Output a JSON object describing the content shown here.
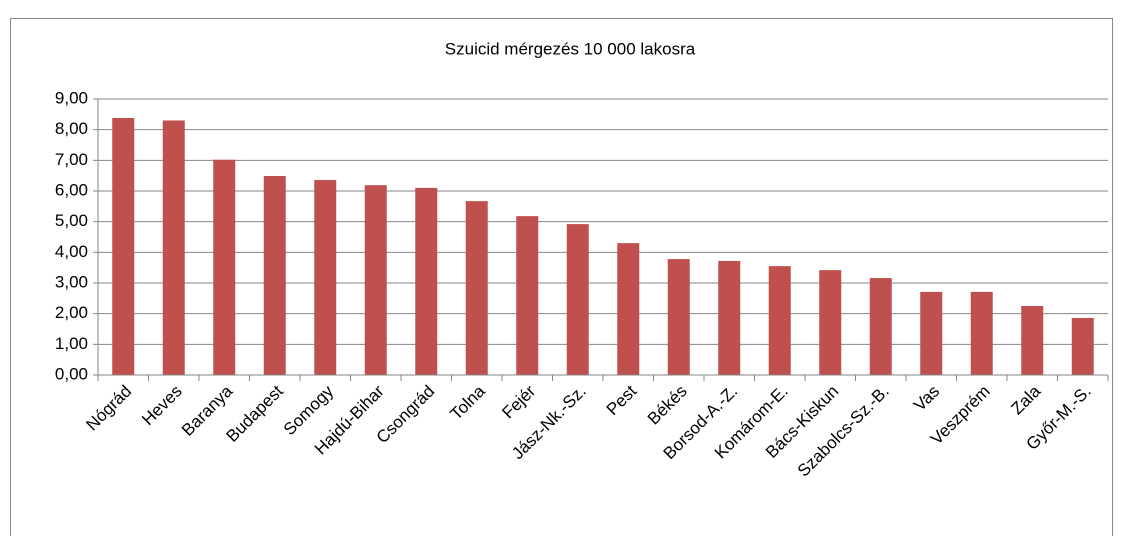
{
  "chart_data": {
    "type": "bar",
    "title": "Szuicid mérgezés 10 000 lakosra",
    "categories": [
      "Nógrád",
      "Heves",
      "Baranya",
      "Budapest",
      "Somogy",
      "Hajdú-Bihar",
      "Csongrád",
      "Tolna",
      "Fejér",
      "Jász-Nk.-Sz.",
      "Pest",
      "Békés",
      "Borsod-A.-Z.",
      "Komárom-E.",
      "Bács-Kiskun",
      "Szabolcs-Sz.-B.",
      "Vas",
      "Veszprém",
      "Zala",
      "Győr-M.-S."
    ],
    "values": [
      8.38,
      8.3,
      7.02,
      6.49,
      6.36,
      6.19,
      6.1,
      5.67,
      5.18,
      4.92,
      4.3,
      3.78,
      3.72,
      3.55,
      3.42,
      3.16,
      2.71,
      2.71,
      2.25,
      1.86
    ],
    "color": "#c0504d",
    "ylim": [
      0,
      9
    ],
    "yticks": [
      {
        "value": 0,
        "label": "0,00"
      },
      {
        "value": 1,
        "label": "1,00"
      },
      {
        "value": 2,
        "label": "2,00"
      },
      {
        "value": 3,
        "label": "3,00"
      },
      {
        "value": 4,
        "label": "4,00"
      },
      {
        "value": 5,
        "label": "5,00"
      },
      {
        "value": 6,
        "label": "6,00"
      },
      {
        "value": 7,
        "label": "7,00"
      },
      {
        "value": 8,
        "label": "8,00"
      },
      {
        "value": 9,
        "label": "9,00"
      }
    ],
    "grid": true
  }
}
